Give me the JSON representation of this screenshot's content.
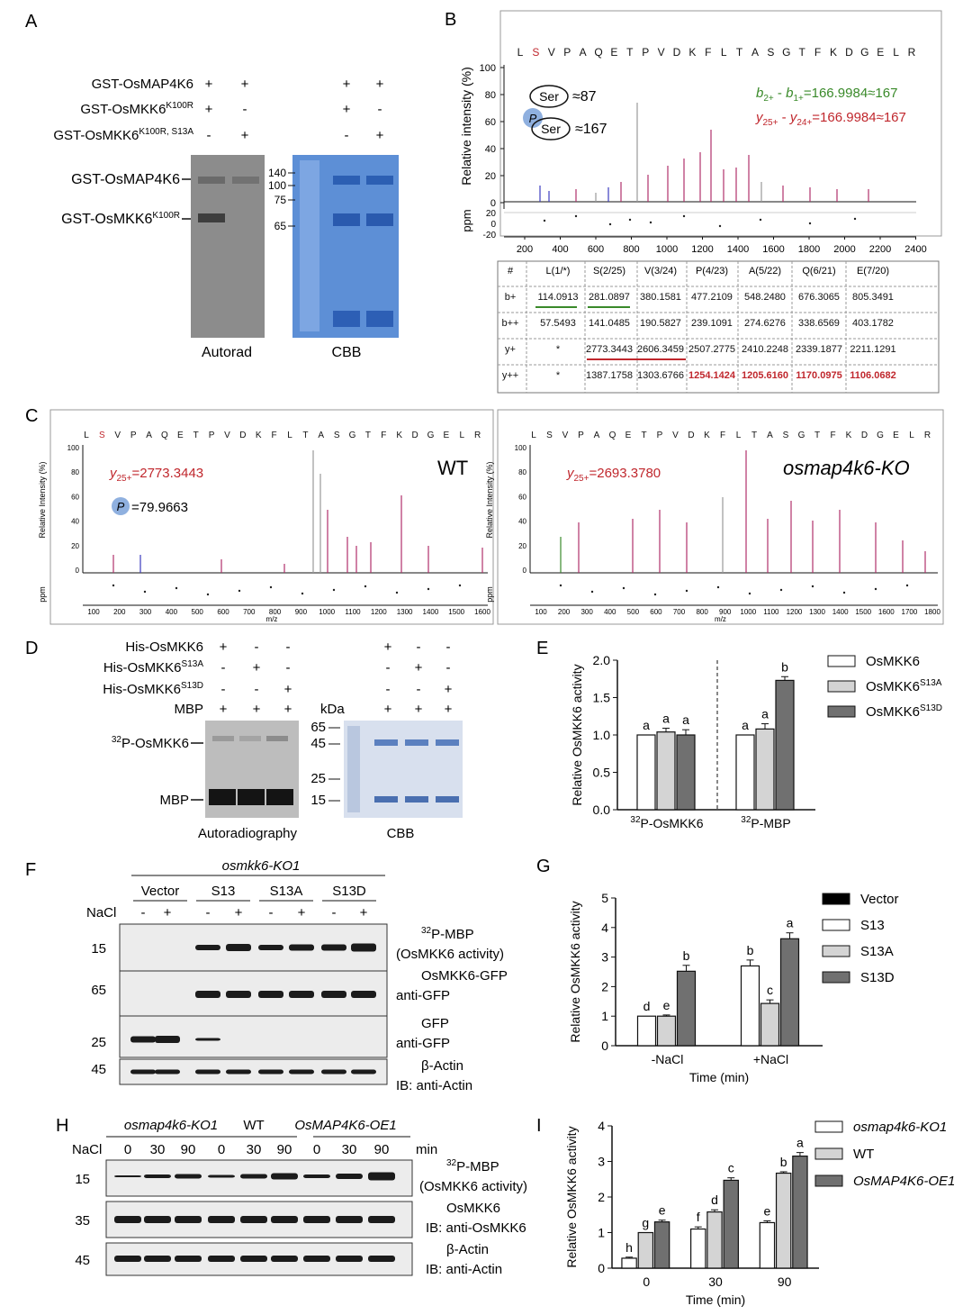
{
  "panels": {
    "A": {
      "letter": "A",
      "rows": [
        {
          "label": "GST-OsMAP4K6",
          "marks": [
            "+",
            "+",
            "+",
            "+"
          ]
        },
        {
          "label": "GST-OsMKK6K100R",
          "marks": [
            "+",
            "-",
            "+",
            "-"
          ]
        },
        {
          "label": "GST-OsMKK6K100R, S13A",
          "marks": [
            "-",
            "+",
            "-",
            "+"
          ]
        }
      ],
      "band_labels": [
        "GST-OsMAP4K6",
        "GST-OsMKK6K100R"
      ],
      "markers": [
        "140",
        "100",
        "75",
        "65"
      ],
      "captions": [
        "Autorad",
        "CBB"
      ]
    },
    "B": {
      "letter": "B",
      "ylabel": "Relative intensity (%)",
      "ppm_label": "ppm",
      "ser_value": "≈87",
      "pser_value": "≈167",
      "ser_text": "Ser",
      "p_text": "P",
      "eq_green": "b2+ - b1+=166.9984≈167",
      "eq_red": "y25+ - y24+=166.9984≈167",
      "peptide": [
        "L",
        "S",
        "V",
        "P",
        "A",
        "Q",
        "E",
        "T",
        "P",
        "V",
        "D",
        "K",
        "F",
        "L",
        "T",
        "A",
        "S",
        "G",
        "T",
        "F",
        "K",
        "D",
        "G",
        "E",
        "L",
        "R"
      ],
      "x_ticks": [
        "200",
        "400",
        "600",
        "800",
        "1000",
        "1200",
        "1400",
        "1600",
        "1800",
        "2000",
        "2200",
        "2400"
      ],
      "y_ticks": [
        "100",
        "80",
        "60",
        "40",
        "20",
        "0"
      ],
      "ppm_ticks": [
        "20",
        "0",
        "-20"
      ],
      "table": {
        "headers": [
          "#",
          "L(1/*)",
          "S(2/25)",
          "V(3/24)",
          "P(4/23)",
          "A(5/22)",
          "Q(6/21)",
          "E(7/20)"
        ],
        "rows": [
          [
            "b+",
            "114.0913",
            "281.0897",
            "380.1581",
            "477.2109",
            "548.2480",
            "676.3065",
            "805.3491"
          ],
          [
            "b++",
            "57.5493",
            "141.0485",
            "190.5827",
            "239.1091",
            "274.6276",
            "338.6569",
            "403.1782"
          ],
          [
            "y+",
            "*",
            "2773.3443",
            "2606.3459",
            "2507.2775",
            "2410.2248",
            "2339.1877",
            "2211.1291"
          ],
          [
            "y++",
            "*",
            "1387.1758",
            "1303.6766",
            "1254.1424",
            "1205.6160",
            "1170.0975",
            "1106.0682"
          ]
        ]
      }
    },
    "C": {
      "letter": "C",
      "wt_label": "WT",
      "ko_label": "osmap4k6-KO",
      "wt_y25": "y25+=2773.3443",
      "ko_y25": "y25+=2693.3780",
      "p_value": "=79.9663",
      "p_text": "P",
      "ylabel": "Relative Intensity (%)",
      "ppm_label": "ppm",
      "xlabel": "m/z",
      "wt_ticks": [
        "100",
        "200",
        "300",
        "400",
        "500",
        "600",
        "700",
        "800",
        "900",
        "1000",
        "1100",
        "1200",
        "1300",
        "1400",
        "1500",
        "1600"
      ],
      "ko_ticks": [
        "100",
        "200",
        "300",
        "400",
        "500",
        "600",
        "700",
        "800",
        "900",
        "1000",
        "1100",
        "1200",
        "1300",
        "1400",
        "1500",
        "1600",
        "1700",
        "1800"
      ],
      "y_ticks": [
        "100",
        "80",
        "60",
        "40",
        "20",
        "0"
      ]
    },
    "D": {
      "letter": "D",
      "rows": [
        {
          "label": "His-OsMKK6",
          "marks": [
            "+",
            "-",
            "-",
            "+",
            "-",
            "-"
          ]
        },
        {
          "label": "His-OsMKK6S13A",
          "marks": [
            "-",
            "+",
            "-",
            "-",
            "+",
            "-"
          ]
        },
        {
          "label": "His-OsMKK6S13D",
          "marks": [
            "-",
            "-",
            "+",
            "-",
            "-",
            "+"
          ]
        },
        {
          "label": "MBP",
          "marks": [
            "+",
            "+",
            "+",
            "+",
            "+",
            "+"
          ]
        }
      ],
      "kda": "kDa",
      "markers": [
        "65",
        "45",
        "25",
        "15"
      ],
      "band_labels": [
        "32P-OsMKK6",
        "MBP"
      ],
      "captions": [
        "Autoradiography",
        "CBB"
      ]
    },
    "F": {
      "letter": "F",
      "header": "osmkk6-KO1",
      "groups": [
        "Vector",
        "S13",
        "S13A",
        "S13D"
      ],
      "nacl_label": "NaCl",
      "nacl_marks": [
        "-",
        "+",
        "-",
        "+",
        "-",
        "+",
        "-",
        "+"
      ],
      "blots": [
        {
          "mw": "15",
          "label1": "32P-MBP",
          "label2": "(OsMKK6 activity)"
        },
        {
          "mw": "65",
          "label1": "OsMKK6-GFP",
          "label2": "anti-GFP"
        },
        {
          "mw": "25",
          "label1": "GFP",
          "label2": "anti-GFP"
        },
        {
          "mw": "45",
          "label1": "β-Actin",
          "label2": "IB: anti-Actin"
        }
      ]
    },
    "H": {
      "letter": "H",
      "groups": [
        "osmap4k6-KO1",
        "WT",
        "OsMAP4K6-OE1"
      ],
      "nacl_label": "NaCl",
      "times": [
        "0",
        "30",
        "90",
        "0",
        "30",
        "90",
        "0",
        "30",
        "90"
      ],
      "min_label": "min",
      "blots": [
        {
          "mw": "15",
          "label1": "32P-MBP",
          "label2": "(OsMKK6 activity)"
        },
        {
          "mw": "35",
          "label1": "OsMKK6",
          "label2": "IB: anti-OsMKK6"
        },
        {
          "mw": "45",
          "label1": "β-Actin",
          "label2": "IB: anti-Actin"
        }
      ]
    }
  },
  "chart_data": [
    {
      "panel": "E",
      "type": "bar",
      "ylabel": "Relative OsMKK6 activity",
      "ylim": [
        0,
        2.0
      ],
      "y_ticks": [
        "0.0",
        "0.5",
        "1.0",
        "1.5",
        "2.0"
      ],
      "categories": [
        "32P-OsMKK6",
        "32P-MBP"
      ],
      "series": [
        {
          "name": "OsMKK6",
          "values": [
            1.0,
            1.0
          ],
          "errors": [
            0.0,
            0.0
          ],
          "letters": [
            "a",
            "a"
          ],
          "color": "#ffffff"
        },
        {
          "name": "OsMKK6S13A",
          "values": [
            1.04,
            1.08
          ],
          "errors": [
            0.05,
            0.07
          ],
          "letters": [
            "a",
            "a"
          ],
          "color": "#d4d4d4"
        },
        {
          "name": "OsMKK6S13D",
          "values": [
            1.0,
            1.73
          ],
          "errors": [
            0.07,
            0.05
          ],
          "letters": [
            "a",
            "b"
          ],
          "color": "#707070"
        }
      ]
    },
    {
      "panel": "G",
      "type": "bar",
      "ylabel": "Relative OsMKK6 activity",
      "xlabel": "Time (min)",
      "ylim": [
        0,
        5
      ],
      "y_ticks": [
        "0",
        "1",
        "2",
        "3",
        "4",
        "5"
      ],
      "categories": [
        "-NaCl",
        "+NaCl"
      ],
      "series": [
        {
          "name": "Vector",
          "values": [
            0,
            0
          ],
          "errors": [
            0,
            0
          ],
          "letters": [
            "",
            ""
          ],
          "color": "#000000"
        },
        {
          "name": "S13",
          "values": [
            1.0,
            2.7
          ],
          "errors": [
            0.0,
            0.2
          ],
          "letters": [
            "d",
            "b"
          ],
          "color": "#ffffff"
        },
        {
          "name": "S13A",
          "values": [
            1.0,
            1.43
          ],
          "errors": [
            0.04,
            0.12
          ],
          "letters": [
            "e",
            "c"
          ],
          "color": "#d4d4d4"
        },
        {
          "name": "S13D",
          "values": [
            2.52,
            3.62
          ],
          "errors": [
            0.2,
            0.2
          ],
          "letters": [
            "b",
            "a"
          ],
          "color": "#707070"
        }
      ]
    },
    {
      "panel": "I",
      "type": "bar",
      "ylabel": "Relative OsMKK6 activity",
      "xlabel": "Time (min)",
      "ylim": [
        0,
        4
      ],
      "y_ticks": [
        "0",
        "1",
        "2",
        "3",
        "4"
      ],
      "categories": [
        "0",
        "30",
        "90"
      ],
      "series": [
        {
          "name": "osmap4k6-KO1",
          "values": [
            0.28,
            1.1,
            1.28
          ],
          "errors": [
            0.03,
            0.06,
            0.05
          ],
          "letters": [
            "h",
            "f",
            "e"
          ],
          "color": "#ffffff"
        },
        {
          "name": "WT",
          "values": [
            1.0,
            1.58,
            2.67
          ],
          "errors": [
            0.0,
            0.06,
            0.04
          ],
          "letters": [
            "g",
            "d",
            "b"
          ],
          "color": "#d4d4d4"
        },
        {
          "name": "OsMAP4K6-OE1",
          "values": [
            1.3,
            2.47,
            3.15
          ],
          "errors": [
            0.05,
            0.07,
            0.1
          ],
          "letters": [
            "e",
            "c",
            "a"
          ],
          "color": "#707070"
        }
      ]
    }
  ]
}
